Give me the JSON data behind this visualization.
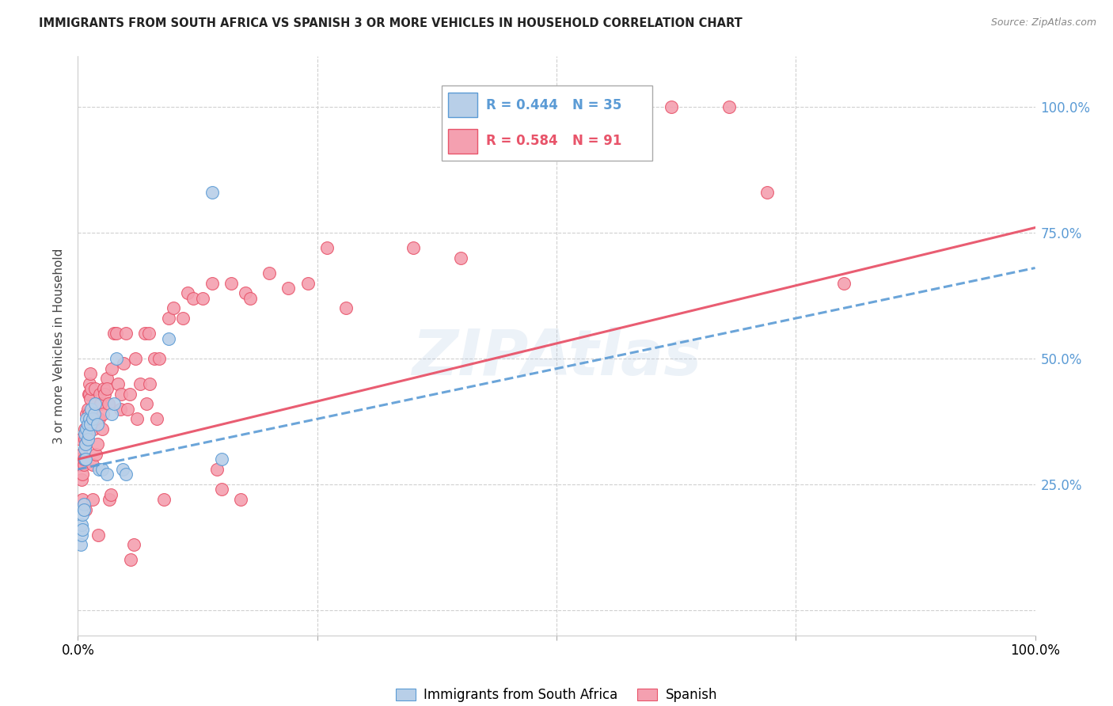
{
  "title": "IMMIGRANTS FROM SOUTH AFRICA VS SPANISH 3 OR MORE VEHICLES IN HOUSEHOLD CORRELATION CHART",
  "source": "Source: ZipAtlas.com",
  "ylabel": "3 or more Vehicles in Household",
  "xlim": [
    0.0,
    1.0
  ],
  "ylim": [
    -0.05,
    1.1
  ],
  "ytick_labels": [
    "",
    "25.0%",
    "50.0%",
    "75.0%",
    "100.0%"
  ],
  "ytick_values": [
    0.0,
    0.25,
    0.5,
    0.75,
    1.0
  ],
  "ytick_color": "#5b9bd5",
  "grid_color": "#d0d0d0",
  "watermark": "ZIPAtlas",
  "blue_R": 0.444,
  "blue_N": 35,
  "pink_R": 0.584,
  "pink_N": 91,
  "blue_line_color": "#5b9bd5",
  "pink_line_color": "#e8546a",
  "blue_scatter_face": "#b8cfe8",
  "blue_scatter_edge": "#5b9bd5",
  "pink_scatter_face": "#f4a0b0",
  "pink_scatter_edge": "#e8546a",
  "blue_scatter": [
    [
      0.003,
      0.13
    ],
    [
      0.004,
      0.15
    ],
    [
      0.004,
      0.17
    ],
    [
      0.005,
      0.16
    ],
    [
      0.005,
      0.19
    ],
    [
      0.006,
      0.21
    ],
    [
      0.006,
      0.2
    ],
    [
      0.007,
      0.3
    ],
    [
      0.007,
      0.32
    ],
    [
      0.007,
      0.35
    ],
    [
      0.008,
      0.3
    ],
    [
      0.008,
      0.33
    ],
    [
      0.009,
      0.36
    ],
    [
      0.009,
      0.38
    ],
    [
      0.01,
      0.34
    ],
    [
      0.01,
      0.37
    ],
    [
      0.011,
      0.35
    ],
    [
      0.012,
      0.38
    ],
    [
      0.013,
      0.37
    ],
    [
      0.014,
      0.4
    ],
    [
      0.015,
      0.38
    ],
    [
      0.017,
      0.39
    ],
    [
      0.018,
      0.41
    ],
    [
      0.02,
      0.37
    ],
    [
      0.022,
      0.28
    ],
    [
      0.025,
      0.28
    ],
    [
      0.03,
      0.27
    ],
    [
      0.035,
      0.39
    ],
    [
      0.038,
      0.41
    ],
    [
      0.04,
      0.5
    ],
    [
      0.047,
      0.28
    ],
    [
      0.05,
      0.27
    ],
    [
      0.095,
      0.54
    ],
    [
      0.14,
      0.83
    ],
    [
      0.15,
      0.3
    ]
  ],
  "pink_scatter": [
    [
      0.002,
      0.3
    ],
    [
      0.003,
      0.29
    ],
    [
      0.003,
      0.34
    ],
    [
      0.004,
      0.26
    ],
    [
      0.004,
      0.31
    ],
    [
      0.005,
      0.27
    ],
    [
      0.005,
      0.22
    ],
    [
      0.006,
      0.29
    ],
    [
      0.006,
      0.3
    ],
    [
      0.007,
      0.36
    ],
    [
      0.007,
      0.34
    ],
    [
      0.008,
      0.33
    ],
    [
      0.008,
      0.2
    ],
    [
      0.009,
      0.35
    ],
    [
      0.009,
      0.39
    ],
    [
      0.01,
      0.37
    ],
    [
      0.01,
      0.4
    ],
    [
      0.011,
      0.39
    ],
    [
      0.011,
      0.43
    ],
    [
      0.012,
      0.45
    ],
    [
      0.012,
      0.43
    ],
    [
      0.013,
      0.47
    ],
    [
      0.013,
      0.42
    ],
    [
      0.014,
      0.44
    ],
    [
      0.015,
      0.29
    ],
    [
      0.015,
      0.22
    ],
    [
      0.016,
      0.36
    ],
    [
      0.017,
      0.38
    ],
    [
      0.018,
      0.44
    ],
    [
      0.019,
      0.31
    ],
    [
      0.02,
      0.33
    ],
    [
      0.021,
      0.15
    ],
    [
      0.022,
      0.38
    ],
    [
      0.023,
      0.43
    ],
    [
      0.024,
      0.41
    ],
    [
      0.025,
      0.36
    ],
    [
      0.026,
      0.39
    ],
    [
      0.027,
      0.44
    ],
    [
      0.028,
      0.43
    ],
    [
      0.03,
      0.46
    ],
    [
      0.03,
      0.44
    ],
    [
      0.032,
      0.41
    ],
    [
      0.033,
      0.22
    ],
    [
      0.034,
      0.23
    ],
    [
      0.035,
      0.48
    ],
    [
      0.038,
      0.55
    ],
    [
      0.04,
      0.55
    ],
    [
      0.042,
      0.45
    ],
    [
      0.044,
      0.4
    ],
    [
      0.045,
      0.43
    ],
    [
      0.048,
      0.49
    ],
    [
      0.05,
      0.55
    ],
    [
      0.052,
      0.4
    ],
    [
      0.054,
      0.43
    ],
    [
      0.055,
      0.1
    ],
    [
      0.058,
      0.13
    ],
    [
      0.06,
      0.5
    ],
    [
      0.062,
      0.38
    ],
    [
      0.065,
      0.45
    ],
    [
      0.07,
      0.55
    ],
    [
      0.072,
      0.41
    ],
    [
      0.074,
      0.55
    ],
    [
      0.075,
      0.45
    ],
    [
      0.08,
      0.5
    ],
    [
      0.082,
      0.38
    ],
    [
      0.085,
      0.5
    ],
    [
      0.09,
      0.22
    ],
    [
      0.095,
      0.58
    ],
    [
      0.1,
      0.6
    ],
    [
      0.11,
      0.58
    ],
    [
      0.115,
      0.63
    ],
    [
      0.12,
      0.62
    ],
    [
      0.13,
      0.62
    ],
    [
      0.14,
      0.65
    ],
    [
      0.145,
      0.28
    ],
    [
      0.15,
      0.24
    ],
    [
      0.16,
      0.65
    ],
    [
      0.17,
      0.22
    ],
    [
      0.175,
      0.63
    ],
    [
      0.18,
      0.62
    ],
    [
      0.2,
      0.67
    ],
    [
      0.22,
      0.64
    ],
    [
      0.24,
      0.65
    ],
    [
      0.26,
      0.72
    ],
    [
      0.28,
      0.6
    ],
    [
      0.35,
      0.72
    ],
    [
      0.4,
      0.7
    ],
    [
      0.62,
      1.0
    ],
    [
      0.68,
      1.0
    ],
    [
      0.72,
      0.83
    ],
    [
      0.8,
      0.65
    ]
  ],
  "blue_line_x": [
    0.0,
    1.0
  ],
  "blue_line_y": [
    0.28,
    0.68
  ],
  "pink_line_x": [
    0.0,
    1.0
  ],
  "pink_line_y": [
    0.3,
    0.76
  ]
}
